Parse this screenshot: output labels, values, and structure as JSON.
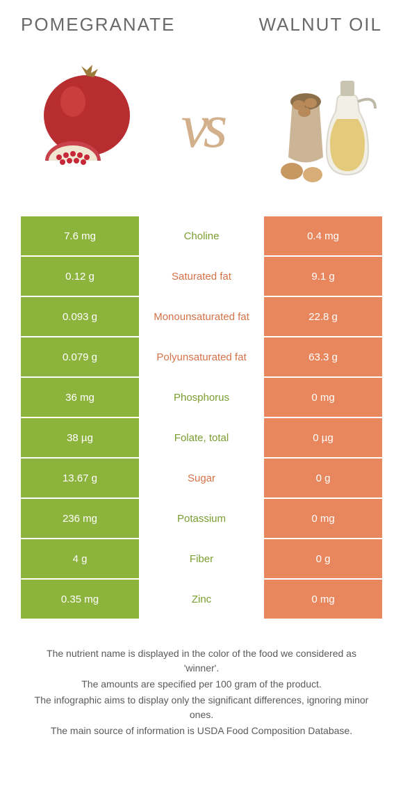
{
  "colors": {
    "left": "#8cb33c",
    "right": "#e8875d",
    "label_left": "#7a9e32",
    "label_right": "#d57248"
  },
  "header": {
    "left_title": "Pomegranate",
    "right_title": "Walnut oil",
    "vs": "vs"
  },
  "rows": [
    {
      "left": "7.6 mg",
      "label": "Choline",
      "right": "0.4 mg",
      "winner": "left"
    },
    {
      "left": "0.12 g",
      "label": "Saturated fat",
      "right": "9.1 g",
      "winner": "right"
    },
    {
      "left": "0.093 g",
      "label": "Monounsaturated fat",
      "right": "22.8 g",
      "winner": "right"
    },
    {
      "left": "0.079 g",
      "label": "Polyunsaturated fat",
      "right": "63.3 g",
      "winner": "right"
    },
    {
      "left": "36 mg",
      "label": "Phosphorus",
      "right": "0 mg",
      "winner": "left"
    },
    {
      "left": "38 µg",
      "label": "Folate, total",
      "right": "0 µg",
      "winner": "left"
    },
    {
      "left": "13.67 g",
      "label": "Sugar",
      "right": "0 g",
      "winner": "right"
    },
    {
      "left": "236 mg",
      "label": "Potassium",
      "right": "0 mg",
      "winner": "left"
    },
    {
      "left": "4 g",
      "label": "Fiber",
      "right": "0 g",
      "winner": "left"
    },
    {
      "left": "0.35 mg",
      "label": "Zinc",
      "right": "0 mg",
      "winner": "left"
    }
  ],
  "footnotes": [
    "The nutrient name is displayed in the color of the food we considered as 'winner'.",
    "The amounts are specified per 100 gram of the product.",
    "The infographic aims to display only the significant differences, ignoring minor ones.",
    "The main source of information is USDA Food Composition Database."
  ]
}
